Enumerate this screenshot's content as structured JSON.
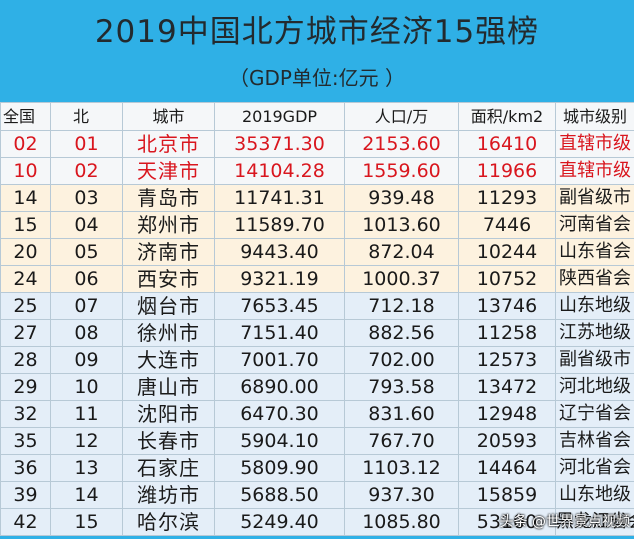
{
  "header": {
    "title": "2019中国北方城市经济15强榜",
    "subtitle": "（GDP单位:亿元 ）"
  },
  "table": {
    "columns": [
      "全国",
      "北",
      "城市",
      "2019GDP",
      "人口/万",
      "面积/km2",
      "城市级别"
    ],
    "rows": [
      {
        "national": "02",
        "north": "01",
        "city": "北京市",
        "gdp": "35371.30",
        "population": "2153.60",
        "area": "16410",
        "level": "直辖市级"
      },
      {
        "national": "10",
        "north": "02",
        "city": "天津市",
        "gdp": "14104.28",
        "population": "1559.60",
        "area": "11966",
        "level": "直辖市级"
      },
      {
        "national": "14",
        "north": "03",
        "city": "青岛市",
        "gdp": "11741.31",
        "population": "939.48",
        "area": "11293",
        "level": "副省级市"
      },
      {
        "national": "15",
        "north": "04",
        "city": "郑州市",
        "gdp": "11589.70",
        "population": "1013.60",
        "area": "7446",
        "level": "河南省会"
      },
      {
        "national": "20",
        "north": "05",
        "city": "济南市",
        "gdp": "9443.40",
        "population": "872.04",
        "area": "10244",
        "level": "山东省会"
      },
      {
        "national": "24",
        "north": "06",
        "city": "西安市",
        "gdp": "9321.19",
        "population": "1000.37",
        "area": "10752",
        "level": "陕西省会"
      },
      {
        "national": "25",
        "north": "07",
        "city": "烟台市",
        "gdp": "7653.45",
        "population": "712.18",
        "area": "13746",
        "level": "山东地级"
      },
      {
        "national": "27",
        "north": "08",
        "city": "徐州市",
        "gdp": "7151.40",
        "population": "882.56",
        "area": "11258",
        "level": "江苏地级"
      },
      {
        "national": "28",
        "north": "09",
        "city": "大连市",
        "gdp": "7001.70",
        "population": "702.00",
        "area": "12573",
        "level": "副省级市"
      },
      {
        "national": "29",
        "north": "10",
        "city": "唐山市",
        "gdp": "6890.00",
        "population": "793.58",
        "area": "13472",
        "level": "河北地级"
      },
      {
        "national": "32",
        "north": "11",
        "city": "沈阳市",
        "gdp": "6470.30",
        "population": "831.60",
        "area": "12948",
        "level": "辽宁省会"
      },
      {
        "national": "35",
        "north": "12",
        "city": "长春市",
        "gdp": "5904.10",
        "population": "767.70",
        "area": "20593",
        "level": "吉林省会"
      },
      {
        "national": "36",
        "north": "13",
        "city": "石家庄",
        "gdp": "5809.90",
        "population": "1103.12",
        "area": "14464",
        "level": "河北省会"
      },
      {
        "national": "39",
        "north": "14",
        "city": "潍坊市",
        "gdp": "5688.50",
        "population": "937.30",
        "area": "15859",
        "level": "山东地级"
      },
      {
        "national": "42",
        "north": "15",
        "city": "哈尔滨",
        "gdp": "5249.40",
        "population": "1085.80",
        "area": "53100",
        "level": "黑龙江省会"
      }
    ]
  },
  "watermark": "头条 @世界景点视频",
  "colors": {
    "header_bg": "#2fb0e6",
    "municipality_text": "#d9161e",
    "subprovincial_row_bg": "#fdf2df",
    "provincial_row_bg": "#e4eef8"
  }
}
